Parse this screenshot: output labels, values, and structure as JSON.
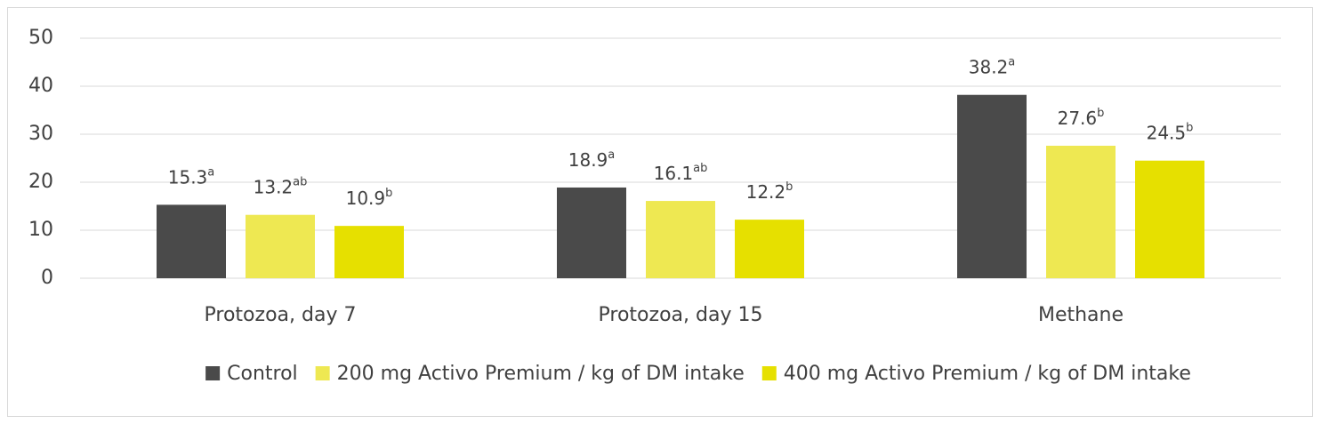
{
  "chart_data": {
    "type": "bar",
    "categories": [
      "Protozoa, day 7",
      "Protozoa, day 15",
      "Methane"
    ],
    "series": [
      {
        "name": "Control",
        "color": "#4a4a4a",
        "values": [
          15.3,
          18.9,
          38.2
        ],
        "superscripts": [
          "a",
          "a",
          "a"
        ]
      },
      {
        "name": "200 mg Activo Premium / kg of DM intake",
        "color": "#eee852",
        "values": [
          13.2,
          16.1,
          27.6
        ],
        "superscripts": [
          "ab",
          "ab",
          "b"
        ]
      },
      {
        "name": "400 mg Activo Premium / kg of DM intake",
        "color": "#e6e000",
        "values": [
          10.9,
          12.2,
          24.5
        ],
        "superscripts": [
          "b",
          "b",
          "b"
        ]
      }
    ],
    "ylim": [
      0,
      50
    ],
    "yticks": [
      0,
      10,
      20,
      30,
      40,
      50
    ],
    "grid": true,
    "legend": "bottom"
  }
}
